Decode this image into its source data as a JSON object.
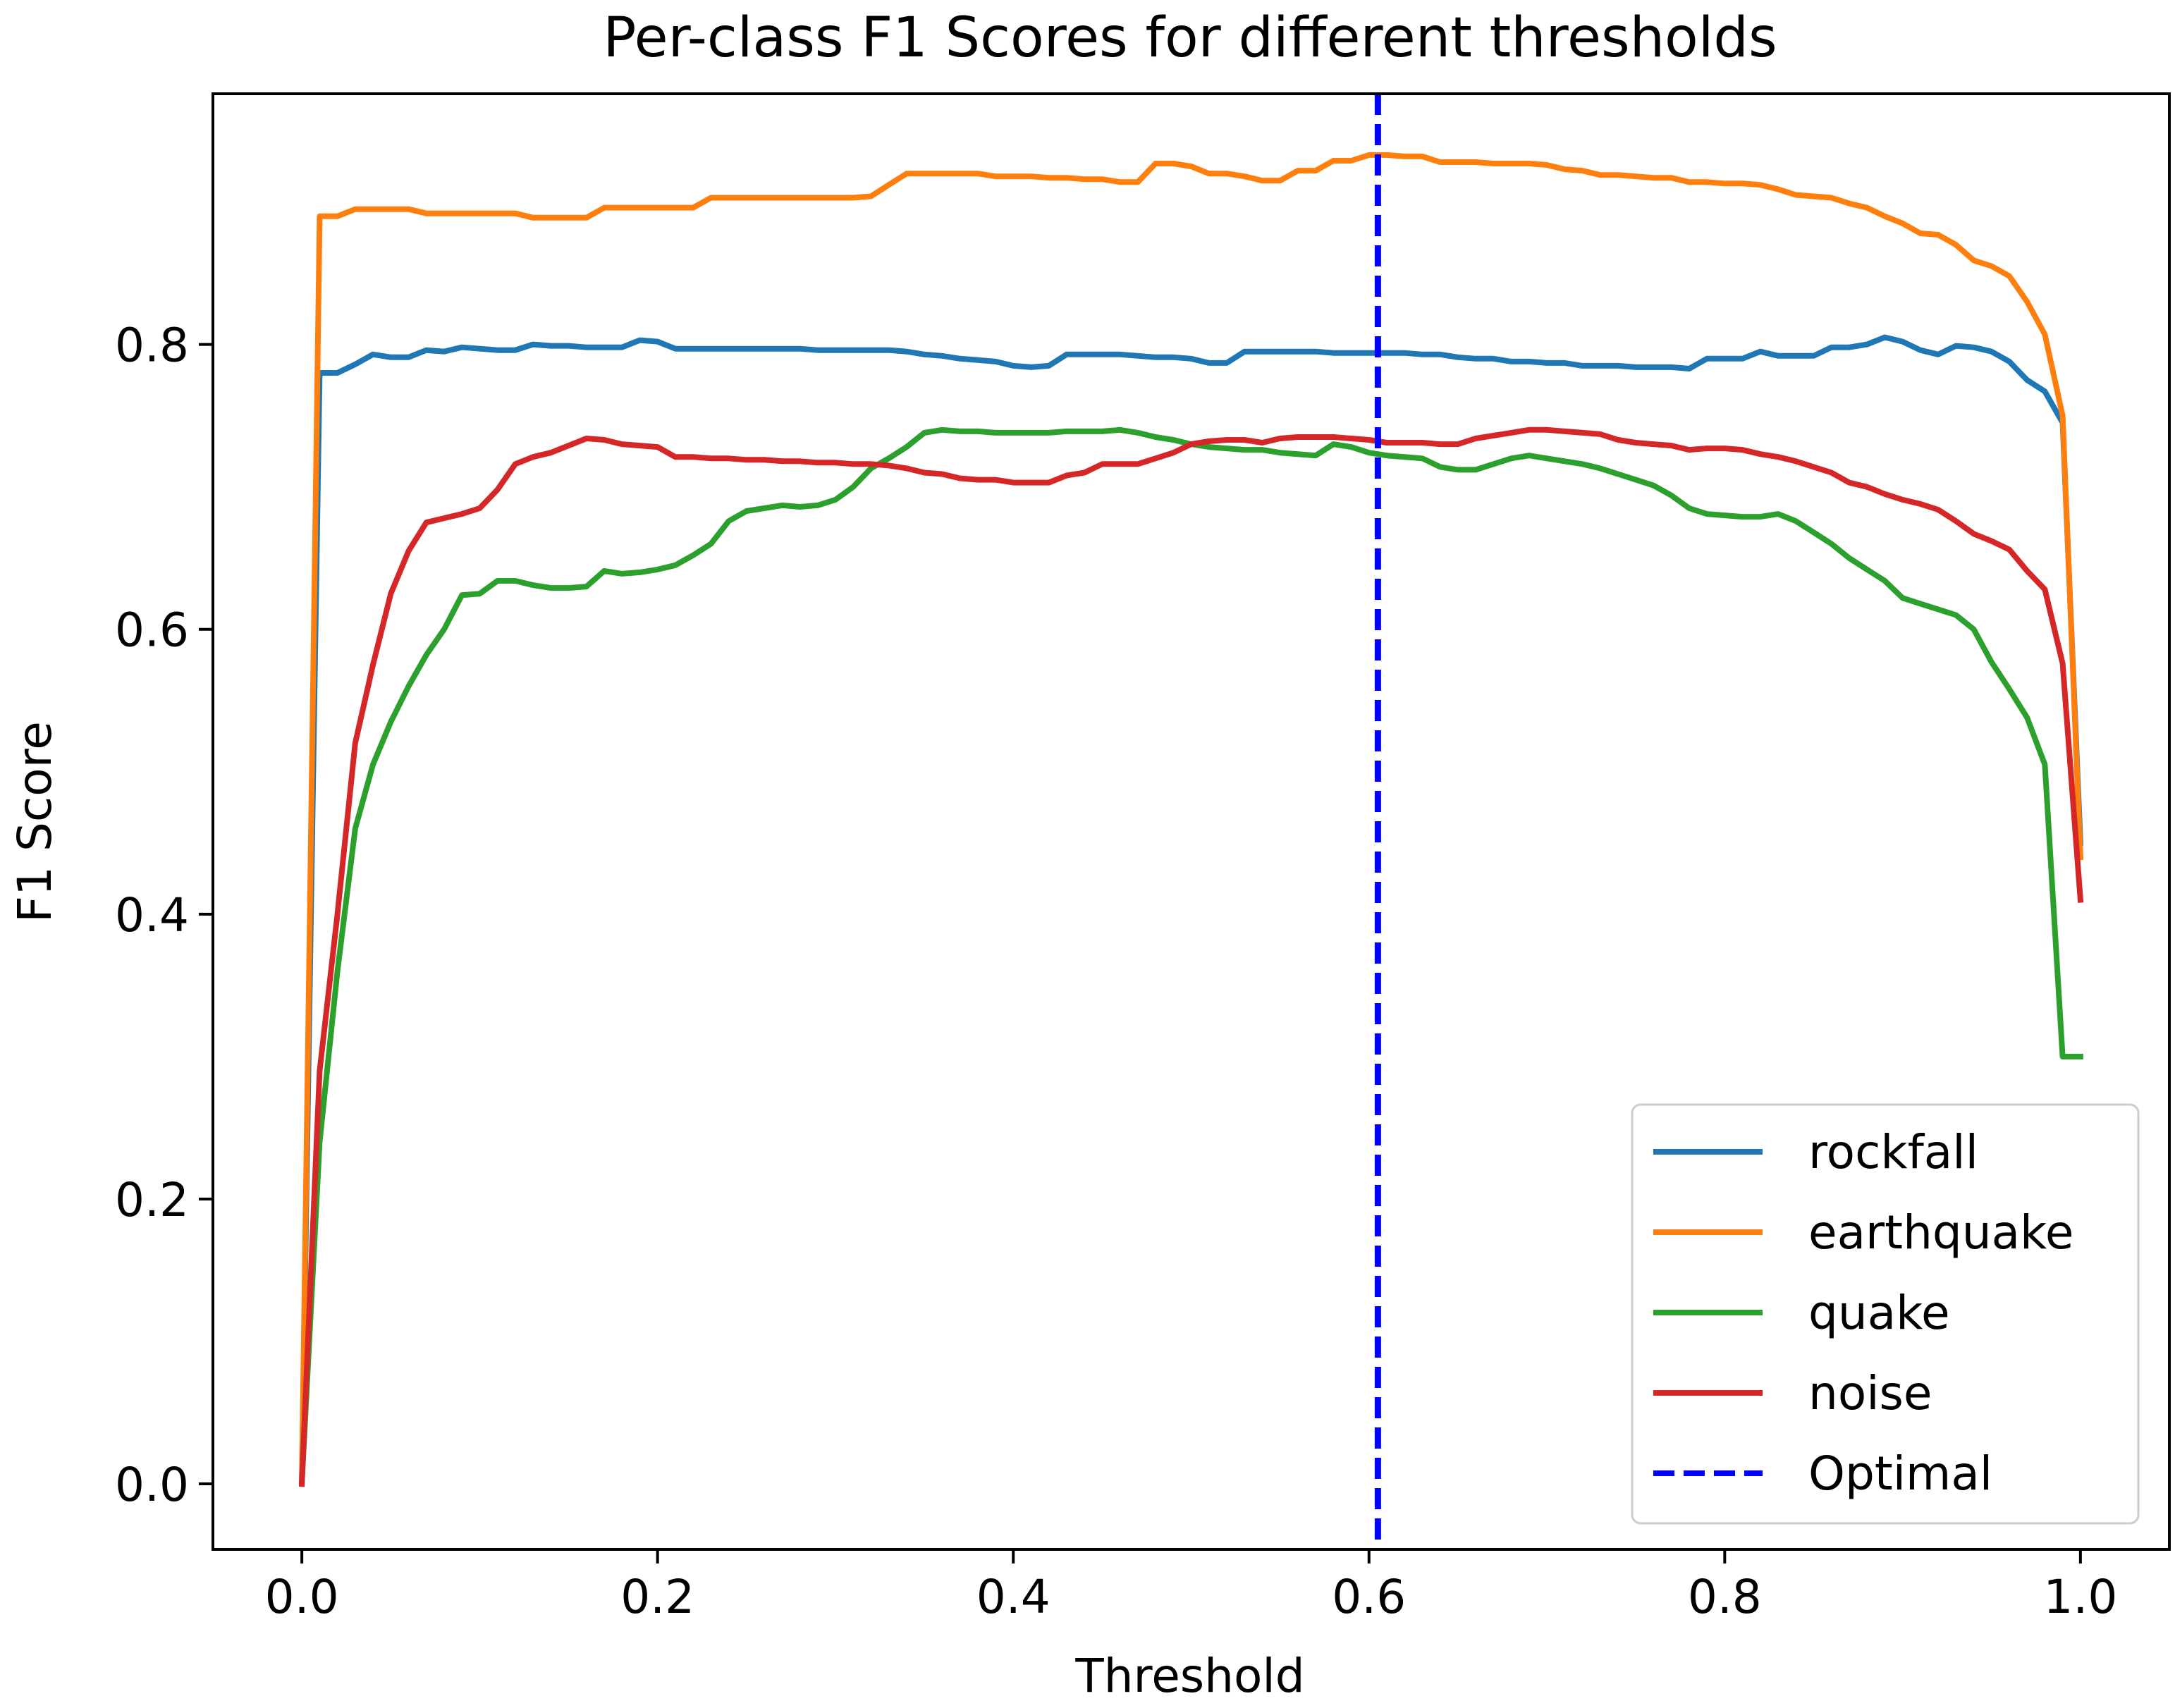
{
  "chart_data": {
    "type": "line",
    "title": "Per-class F1 Scores for different thresholds",
    "xlabel": "Threshold",
    "ylabel": "F1 Score",
    "xlim": [
      -0.05,
      1.05
    ],
    "ylim": [
      -0.046,
      0.976
    ],
    "xticks": [
      0.0,
      0.2,
      0.4,
      0.6,
      0.8,
      1.0
    ],
    "xtick_labels": [
      "0.0",
      "0.2",
      "0.4",
      "0.6",
      "0.8",
      "1.0"
    ],
    "yticks": [
      0.0,
      0.2,
      0.4,
      0.6,
      0.8
    ],
    "ytick_labels": [
      "0.0",
      "0.2",
      "0.4",
      "0.6",
      "0.8"
    ],
    "grid": false,
    "legend_position": "lower-right",
    "optimal_threshold": 0.605,
    "series": [
      {
        "name": "rockfall",
        "color": "#1f77b4",
        "x": [
          0.0,
          0.01,
          0.02,
          0.03,
          0.04,
          0.05,
          0.06,
          0.07,
          0.08,
          0.09,
          0.1,
          0.11,
          0.12,
          0.13,
          0.14,
          0.15,
          0.16,
          0.17,
          0.18,
          0.19,
          0.2,
          0.21,
          0.22,
          0.23,
          0.24,
          0.25,
          0.26,
          0.27,
          0.28,
          0.29,
          0.3,
          0.31,
          0.32,
          0.33,
          0.34,
          0.35,
          0.36,
          0.37,
          0.38,
          0.39,
          0.4,
          0.41,
          0.42,
          0.43,
          0.44,
          0.45,
          0.46,
          0.47,
          0.48,
          0.49,
          0.5,
          0.51,
          0.52,
          0.53,
          0.54,
          0.55,
          0.56,
          0.57,
          0.58,
          0.59,
          0.6,
          0.61,
          0.62,
          0.63,
          0.64,
          0.65,
          0.66,
          0.67,
          0.68,
          0.69,
          0.7,
          0.71,
          0.72,
          0.73,
          0.74,
          0.75,
          0.76,
          0.77,
          0.78,
          0.79,
          0.8,
          0.81,
          0.82,
          0.83,
          0.84,
          0.85,
          0.86,
          0.87,
          0.88,
          0.89,
          0.9,
          0.91,
          0.92,
          0.93,
          0.94,
          0.95,
          0.96,
          0.97,
          0.98,
          0.99,
          1.0
        ],
        "y": [
          0.0,
          0.78,
          0.78,
          0.786,
          0.793,
          0.791,
          0.791,
          0.796,
          0.795,
          0.798,
          0.797,
          0.796,
          0.796,
          0.8,
          0.799,
          0.799,
          0.798,
          0.798,
          0.798,
          0.803,
          0.802,
          0.797,
          0.797,
          0.797,
          0.797,
          0.797,
          0.797,
          0.797,
          0.797,
          0.796,
          0.796,
          0.796,
          0.796,
          0.796,
          0.795,
          0.793,
          0.792,
          0.79,
          0.789,
          0.788,
          0.785,
          0.784,
          0.785,
          0.793,
          0.793,
          0.793,
          0.793,
          0.792,
          0.791,
          0.791,
          0.79,
          0.787,
          0.787,
          0.795,
          0.795,
          0.795,
          0.795,
          0.795,
          0.794,
          0.794,
          0.794,
          0.794,
          0.794,
          0.793,
          0.793,
          0.791,
          0.79,
          0.79,
          0.788,
          0.788,
          0.787,
          0.787,
          0.785,
          0.785,
          0.785,
          0.784,
          0.784,
          0.784,
          0.783,
          0.79,
          0.79,
          0.79,
          0.795,
          0.792,
          0.792,
          0.792,
          0.798,
          0.798,
          0.8,
          0.805,
          0.802,
          0.796,
          0.793,
          0.799,
          0.798,
          0.795,
          0.788,
          0.775,
          0.767,
          0.745,
          0.45
        ]
      },
      {
        "name": "earthquake",
        "color": "#ff7f0e",
        "x": [
          0.0,
          0.01,
          0.02,
          0.03,
          0.04,
          0.05,
          0.06,
          0.07,
          0.08,
          0.09,
          0.1,
          0.11,
          0.12,
          0.13,
          0.14,
          0.15,
          0.16,
          0.17,
          0.18,
          0.19,
          0.2,
          0.21,
          0.22,
          0.23,
          0.24,
          0.25,
          0.26,
          0.27,
          0.28,
          0.29,
          0.3,
          0.31,
          0.32,
          0.33,
          0.34,
          0.35,
          0.36,
          0.37,
          0.38,
          0.39,
          0.4,
          0.41,
          0.42,
          0.43,
          0.44,
          0.45,
          0.46,
          0.47,
          0.48,
          0.49,
          0.5,
          0.51,
          0.52,
          0.53,
          0.54,
          0.55,
          0.56,
          0.57,
          0.58,
          0.59,
          0.6,
          0.61,
          0.62,
          0.63,
          0.64,
          0.65,
          0.66,
          0.67,
          0.68,
          0.69,
          0.7,
          0.71,
          0.72,
          0.73,
          0.74,
          0.75,
          0.76,
          0.77,
          0.78,
          0.79,
          0.8,
          0.81,
          0.82,
          0.83,
          0.84,
          0.85,
          0.86,
          0.87,
          0.88,
          0.89,
          0.9,
          0.91,
          0.92,
          0.93,
          0.94,
          0.95,
          0.96,
          0.97,
          0.98,
          0.99,
          1.0
        ],
        "y": [
          0.0,
          0.89,
          0.89,
          0.895,
          0.895,
          0.895,
          0.895,
          0.892,
          0.892,
          0.892,
          0.892,
          0.892,
          0.892,
          0.889,
          0.889,
          0.889,
          0.889,
          0.896,
          0.896,
          0.896,
          0.896,
          0.896,
          0.896,
          0.903,
          0.903,
          0.903,
          0.903,
          0.903,
          0.903,
          0.903,
          0.903,
          0.903,
          0.904,
          0.912,
          0.92,
          0.92,
          0.92,
          0.92,
          0.92,
          0.918,
          0.918,
          0.918,
          0.917,
          0.917,
          0.916,
          0.916,
          0.914,
          0.914,
          0.927,
          0.927,
          0.925,
          0.92,
          0.92,
          0.918,
          0.915,
          0.915,
          0.922,
          0.922,
          0.929,
          0.929,
          0.933,
          0.933,
          0.932,
          0.932,
          0.928,
          0.928,
          0.928,
          0.927,
          0.927,
          0.927,
          0.926,
          0.923,
          0.922,
          0.919,
          0.919,
          0.918,
          0.917,
          0.917,
          0.914,
          0.914,
          0.913,
          0.913,
          0.912,
          0.909,
          0.905,
          0.904,
          0.903,
          0.899,
          0.896,
          0.89,
          0.885,
          0.878,
          0.877,
          0.87,
          0.859,
          0.855,
          0.848,
          0.83,
          0.807,
          0.75,
          0.44
        ]
      },
      {
        "name": "quake",
        "color": "#2ca02c",
        "x": [
          0.0,
          0.01,
          0.02,
          0.03,
          0.04,
          0.05,
          0.06,
          0.07,
          0.08,
          0.09,
          0.1,
          0.11,
          0.12,
          0.13,
          0.14,
          0.15,
          0.16,
          0.17,
          0.18,
          0.19,
          0.2,
          0.21,
          0.22,
          0.23,
          0.24,
          0.25,
          0.26,
          0.27,
          0.28,
          0.29,
          0.3,
          0.31,
          0.32,
          0.33,
          0.34,
          0.35,
          0.36,
          0.37,
          0.38,
          0.39,
          0.4,
          0.41,
          0.42,
          0.43,
          0.44,
          0.45,
          0.46,
          0.47,
          0.48,
          0.49,
          0.5,
          0.51,
          0.52,
          0.53,
          0.54,
          0.55,
          0.56,
          0.57,
          0.58,
          0.59,
          0.6,
          0.61,
          0.62,
          0.63,
          0.64,
          0.65,
          0.66,
          0.67,
          0.68,
          0.69,
          0.7,
          0.71,
          0.72,
          0.73,
          0.74,
          0.75,
          0.76,
          0.77,
          0.78,
          0.79,
          0.8,
          0.81,
          0.82,
          0.83,
          0.84,
          0.85,
          0.86,
          0.87,
          0.88,
          0.89,
          0.9,
          0.91,
          0.92,
          0.93,
          0.94,
          0.95,
          0.96,
          0.97,
          0.98,
          0.99,
          1.0
        ],
        "y": [
          0.0,
          0.24,
          0.36,
          0.46,
          0.505,
          0.535,
          0.56,
          0.582,
          0.6,
          0.624,
          0.625,
          0.634,
          0.634,
          0.631,
          0.629,
          0.629,
          0.63,
          0.641,
          0.639,
          0.64,
          0.642,
          0.645,
          0.652,
          0.66,
          0.676,
          0.683,
          0.685,
          0.687,
          0.686,
          0.687,
          0.691,
          0.7,
          0.713,
          0.72,
          0.728,
          0.738,
          0.74,
          0.739,
          0.739,
          0.738,
          0.738,
          0.738,
          0.738,
          0.739,
          0.739,
          0.739,
          0.74,
          0.738,
          0.735,
          0.733,
          0.73,
          0.728,
          0.727,
          0.726,
          0.726,
          0.724,
          0.723,
          0.722,
          0.73,
          0.728,
          0.724,
          0.722,
          0.721,
          0.72,
          0.714,
          0.712,
          0.712,
          0.716,
          0.72,
          0.722,
          0.72,
          0.718,
          0.716,
          0.713,
          0.709,
          0.705,
          0.701,
          0.694,
          0.685,
          0.681,
          0.68,
          0.679,
          0.679,
          0.681,
          0.676,
          0.668,
          0.66,
          0.65,
          0.642,
          0.634,
          0.622,
          0.618,
          0.614,
          0.61,
          0.6,
          0.577,
          0.558,
          0.538,
          0.505,
          0.3,
          0.3
        ]
      },
      {
        "name": "noise",
        "color": "#d62728",
        "x": [
          0.0,
          0.01,
          0.02,
          0.03,
          0.04,
          0.05,
          0.06,
          0.07,
          0.08,
          0.09,
          0.1,
          0.11,
          0.12,
          0.13,
          0.14,
          0.15,
          0.16,
          0.17,
          0.18,
          0.19,
          0.2,
          0.21,
          0.22,
          0.23,
          0.24,
          0.25,
          0.26,
          0.27,
          0.28,
          0.29,
          0.3,
          0.31,
          0.32,
          0.33,
          0.34,
          0.35,
          0.36,
          0.37,
          0.38,
          0.39,
          0.4,
          0.41,
          0.42,
          0.43,
          0.44,
          0.45,
          0.46,
          0.47,
          0.48,
          0.49,
          0.5,
          0.51,
          0.52,
          0.53,
          0.54,
          0.55,
          0.56,
          0.57,
          0.58,
          0.59,
          0.6,
          0.61,
          0.62,
          0.63,
          0.64,
          0.65,
          0.66,
          0.67,
          0.68,
          0.69,
          0.7,
          0.71,
          0.72,
          0.73,
          0.74,
          0.75,
          0.76,
          0.77,
          0.78,
          0.79,
          0.8,
          0.81,
          0.82,
          0.83,
          0.84,
          0.85,
          0.86,
          0.87,
          0.88,
          0.89,
          0.9,
          0.91,
          0.92,
          0.93,
          0.94,
          0.95,
          0.96,
          0.97,
          0.98,
          0.99,
          1.0
        ],
        "y": [
          0.0,
          0.29,
          0.4,
          0.52,
          0.575,
          0.625,
          0.655,
          0.675,
          0.678,
          0.681,
          0.685,
          0.698,
          0.716,
          0.721,
          0.724,
          0.729,
          0.734,
          0.733,
          0.73,
          0.729,
          0.728,
          0.721,
          0.721,
          0.72,
          0.72,
          0.719,
          0.719,
          0.718,
          0.718,
          0.717,
          0.717,
          0.716,
          0.716,
          0.715,
          0.713,
          0.71,
          0.709,
          0.706,
          0.705,
          0.705,
          0.703,
          0.703,
          0.703,
          0.708,
          0.71,
          0.716,
          0.716,
          0.716,
          0.72,
          0.724,
          0.73,
          0.732,
          0.733,
          0.733,
          0.731,
          0.734,
          0.735,
          0.735,
          0.735,
          0.734,
          0.733,
          0.731,
          0.731,
          0.731,
          0.73,
          0.73,
          0.734,
          0.736,
          0.738,
          0.74,
          0.74,
          0.739,
          0.738,
          0.737,
          0.733,
          0.731,
          0.73,
          0.729,
          0.726,
          0.727,
          0.727,
          0.726,
          0.723,
          0.721,
          0.718,
          0.714,
          0.71,
          0.703,
          0.7,
          0.695,
          0.691,
          0.688,
          0.684,
          0.676,
          0.667,
          0.662,
          0.656,
          0.641,
          0.628,
          0.576,
          0.41
        ]
      }
    ],
    "vlines": [
      {
        "name": "Optimal",
        "x": 0.605,
        "color": "#0000ff",
        "style": "dashed"
      }
    ],
    "legend": [
      {
        "label": "rockfall",
        "color": "#1f77b4",
        "style": "solid"
      },
      {
        "label": "earthquake",
        "color": "#ff7f0e",
        "style": "solid"
      },
      {
        "label": "quake",
        "color": "#2ca02c",
        "style": "solid"
      },
      {
        "label": "noise",
        "color": "#d62728",
        "style": "solid"
      },
      {
        "label": "Optimal",
        "color": "#0000ff",
        "style": "dashed"
      }
    ]
  }
}
